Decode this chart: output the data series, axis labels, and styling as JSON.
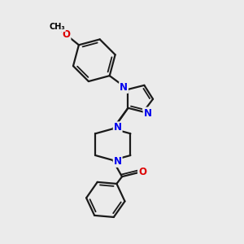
{
  "bg_color": "#ebebeb",
  "bond_color": "#1a1a1a",
  "bond_width": 1.6,
  "atom_colors": {
    "N": "#0000ee",
    "O": "#dd0000",
    "C": "#1a1a1a"
  },
  "font_size_atom": 8.5
}
